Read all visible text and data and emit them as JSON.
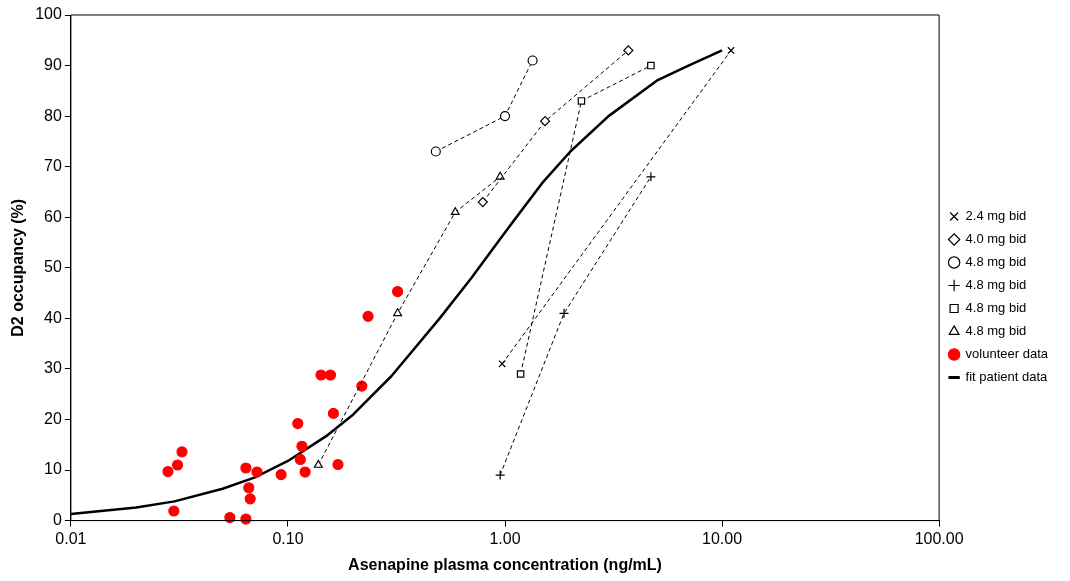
{
  "chart_data": {
    "type": "line",
    "xlabel": "Asenapine plasma concentration (ng/mL)",
    "ylabel": "D2 occupancy (%)",
    "log": "x",
    "xlim": [
      0.01,
      100
    ],
    "xticks": [
      {
        "value": 0.01,
        "label": "0.01"
      },
      {
        "value": 0.1,
        "label": "0.10"
      },
      {
        "value": 1,
        "label": "1.00"
      },
      {
        "value": 10,
        "label": "10.00"
      },
      {
        "value": 100,
        "label": "100.00"
      }
    ],
    "ylim": [
      0,
      100
    ],
    "yticks": [
      0,
      10,
      20,
      30,
      40,
      50,
      60,
      70,
      80,
      90,
      100
    ],
    "grid": false,
    "legend": "right",
    "series": [
      {
        "name": "2.4 mg bid",
        "color": "#000000",
        "marker": "x",
        "line_style": "dashed",
        "x": [
          0.97,
          11
        ],
        "values": [
          31,
          93
        ]
      },
      {
        "name": "4.0 mg bid",
        "color": "#000000",
        "marker": "diamond",
        "line_style": "dashed",
        "x": [
          0.79,
          1.53,
          3.7
        ],
        "values": [
          63,
          79,
          93
        ]
      },
      {
        "name": "4.8 mg bid",
        "color": "#000000",
        "marker": "circle",
        "line_style": "dashed",
        "x": [
          0.48,
          1.0,
          1.34
        ],
        "values": [
          73,
          80,
          91
        ]
      },
      {
        "name": "4.8 mg bid",
        "color": "#000000",
        "marker": "cross",
        "line_style": "dashed",
        "x": [
          0.95,
          1.87,
          4.7
        ],
        "values": [
          9,
          41,
          68
        ]
      },
      {
        "name": "4.8 mg bid",
        "color": "#000000",
        "marker": "square",
        "line_style": "dashed",
        "x": [
          1.18,
          2.25,
          4.7
        ],
        "values": [
          29,
          83,
          90
        ]
      },
      {
        "name": "4.8 mg bid",
        "color": "#000000",
        "marker": "triangle",
        "line_style": "dashed",
        "x": [
          0.138,
          0.32,
          0.59,
          0.95
        ],
        "values": [
          11,
          41,
          61,
          68
        ]
      },
      {
        "name": "volunteer data",
        "type": "scatter",
        "color": "#ff0000",
        "marker": "circle",
        "x": [
          0.32,
          0.234,
          0.142,
          0.157,
          0.219,
          0.162,
          0.111,
          0.116,
          0.114,
          0.17,
          0.12,
          0.093,
          0.072,
          0.064,
          0.066,
          0.067,
          0.054,
          0.064,
          0.0298,
          0.0325,
          0.031,
          0.028
        ],
        "values": [
          45.3,
          40.4,
          28.8,
          28.8,
          26.6,
          21.2,
          19.2,
          14.7,
          12.1,
          11.1,
          9.6,
          9.1,
          9.6,
          10.4,
          6.5,
          4.3,
          0.6,
          0.3,
          1.9,
          13.6,
          11.0,
          9.7
        ]
      },
      {
        "name": "fit patient data",
        "color": "#000000",
        "marker": "none",
        "line_style": "solid",
        "x": [
          0.01,
          0.02,
          0.03,
          0.05,
          0.07,
          0.1,
          0.15,
          0.2,
          0.3,
          0.5,
          0.7,
          1,
          1.5,
          2,
          3,
          5,
          7,
          10
        ],
        "values": [
          1.3,
          2.6,
          3.8,
          6.3,
          8.5,
          11.8,
          16.7,
          21,
          28.6,
          40,
          48,
          57,
          67,
          73,
          80,
          87,
          90,
          93
        ]
      }
    ]
  }
}
